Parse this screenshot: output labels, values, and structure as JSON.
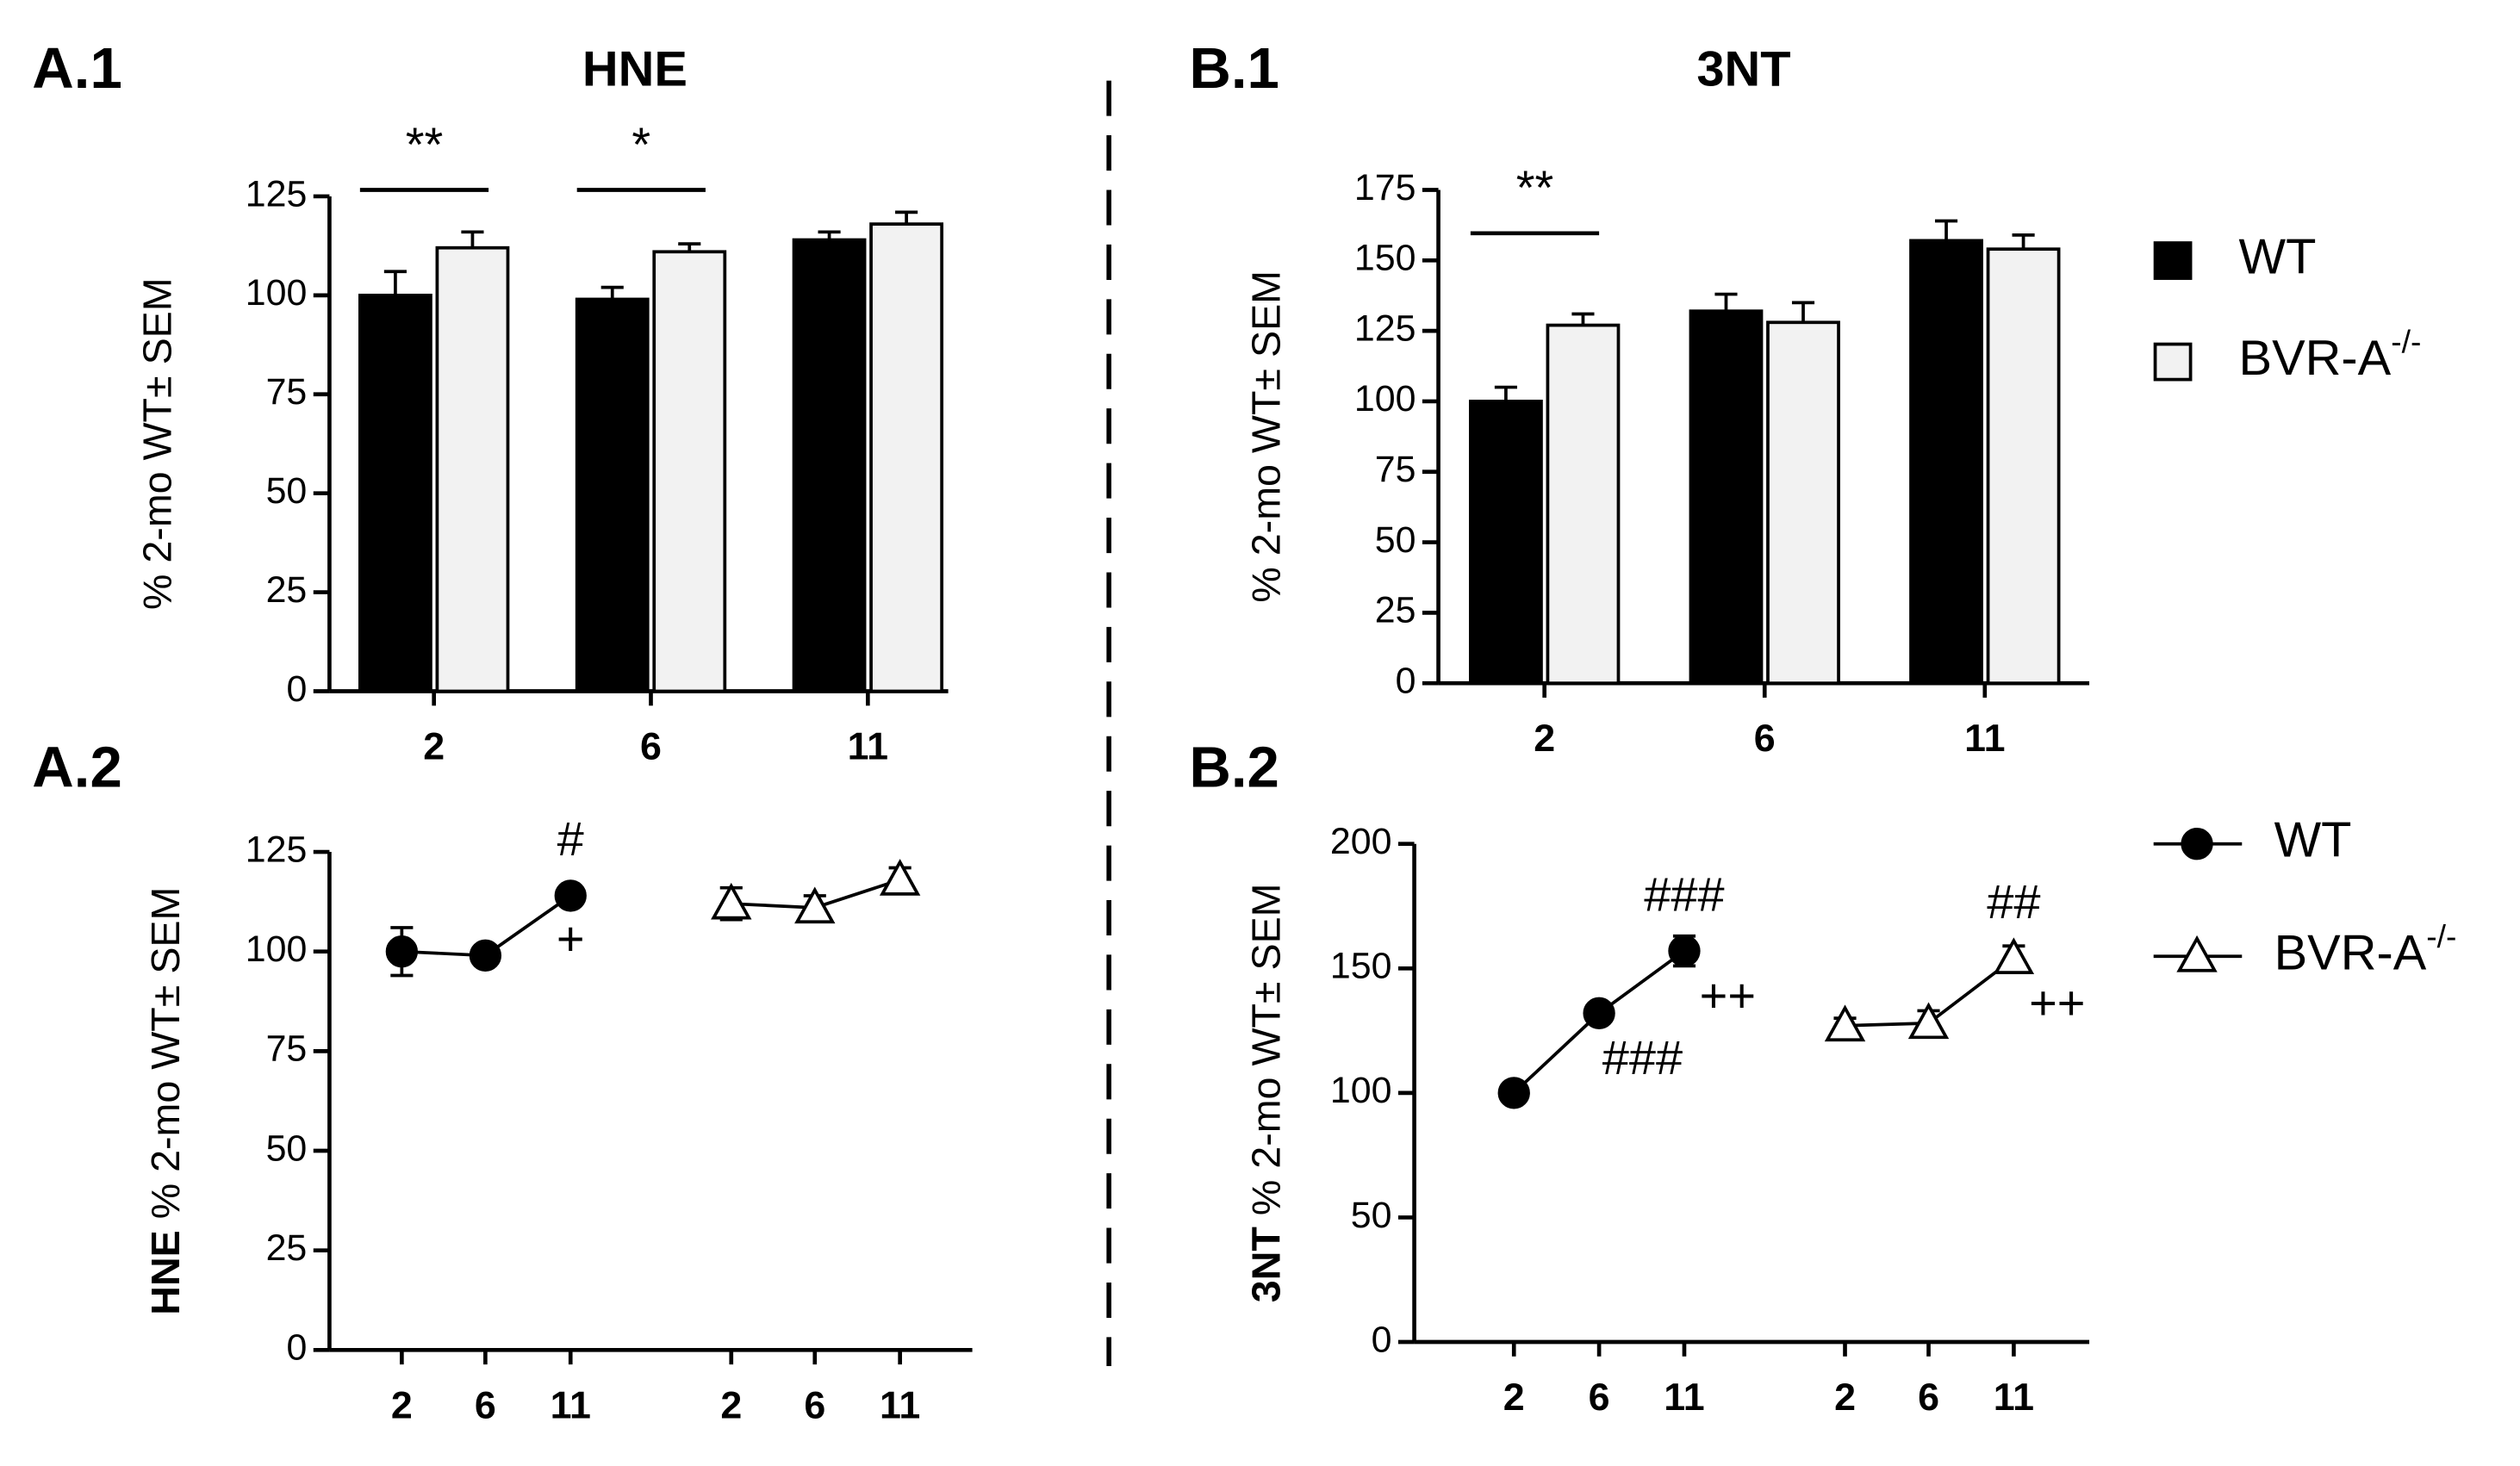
{
  "chart_data": [
    {
      "type": "bar",
      "panel": "A.1",
      "title": "HNE",
      "ylabel": "% 2-mo WT± SEM",
      "categories": [
        "2",
        "6",
        "11"
      ],
      "series": [
        {
          "color": "#000000",
          "values": [
            100,
            99,
            114
          ],
          "errors": [
            6,
            3,
            2
          ]
        },
        {
          "color": "#f2f2f2",
          "values": [
            112,
            111,
            118
          ],
          "errors": [
            4,
            2,
            3
          ]
        }
      ],
      "ylim": [
        0,
        125
      ],
      "yticks": [
        0,
        25,
        50,
        75,
        100,
        125
      ],
      "annotations": [
        {
          "text": "**",
          "category": 0
        },
        {
          "text": "*",
          "category": 1
        }
      ]
    },
    {
      "type": "bar",
      "panel": "B.1",
      "title": "3NT",
      "ylabel": "% 2-mo WT± SEM",
      "categories": [
        "2",
        "6",
        "11"
      ],
      "series": [
        {
          "name": "WT",
          "color": "#000000",
          "values": [
            100,
            132,
            157
          ],
          "errors": [
            5,
            6,
            7
          ]
        },
        {
          "name": "BVR-A",
          "name_superscript": "-/-",
          "color": "#f2f2f2",
          "values": [
            127,
            128,
            154
          ],
          "errors": [
            4,
            7,
            5
          ]
        }
      ],
      "ylim": [
        0,
        175
      ],
      "yticks": [
        0,
        25,
        50,
        75,
        100,
        125,
        150,
        175
      ],
      "annotations": [
        {
          "text": "**",
          "category": 0
        }
      ]
    },
    {
      "type": "line",
      "panel": "A.2",
      "ylabel_bold": "HNE",
      "ylabel": "% 2-mo WT± SEM",
      "categories": [
        "2",
        "6",
        "11"
      ],
      "series": [
        {
          "color": "#000000",
          "marker": "circle",
          "values": [
            100,
            99,
            114
          ],
          "errors": [
            6,
            2,
            2
          ]
        },
        {
          "color": "#ffffff",
          "marker": "triangle",
          "values": [
            112,
            111,
            118
          ],
          "errors": [
            4,
            3,
            3
          ]
        }
      ],
      "ylim": [
        0,
        125
      ],
      "yticks": [
        0,
        25,
        50,
        75,
        100,
        125
      ],
      "annotations": [
        {
          "text": "#",
          "series": 0,
          "index": 2,
          "position": "above"
        },
        {
          "text": "+",
          "series": 0,
          "index": 2,
          "position": "below"
        }
      ]
    },
    {
      "type": "line",
      "panel": "B.2",
      "ylabel_bold": "3NT",
      "ylabel": "% 2-mo WT± SEM",
      "categories": [
        "2",
        "6",
        "11"
      ],
      "series": [
        {
          "name": "WT",
          "color": "#000000",
          "marker": "circle",
          "values": [
            100,
            132,
            157
          ],
          "errors": [
            2,
            3,
            6
          ]
        },
        {
          "name": "BVR-A",
          "name_superscript": "-/-",
          "color": "#ffffff",
          "marker": "triangle",
          "values": [
            127,
            128,
            154
          ],
          "errors": [
            3,
            5,
            5
          ]
        }
      ],
      "ylim": [
        0,
        200
      ],
      "yticks": [
        0,
        50,
        100,
        150,
        200
      ],
      "annotations": [
        {
          "text": "###",
          "series": 0,
          "index": 2,
          "position": "above"
        },
        {
          "text": "###",
          "series": 0,
          "index": 1,
          "position": "below-right"
        },
        {
          "text": "++",
          "series": 0,
          "index": 2,
          "position": "below-right"
        },
        {
          "text": "##",
          "series": 1,
          "index": 2,
          "position": "above"
        },
        {
          "text": "++",
          "series": 1,
          "index": 2,
          "position": "below-right"
        }
      ]
    }
  ]
}
